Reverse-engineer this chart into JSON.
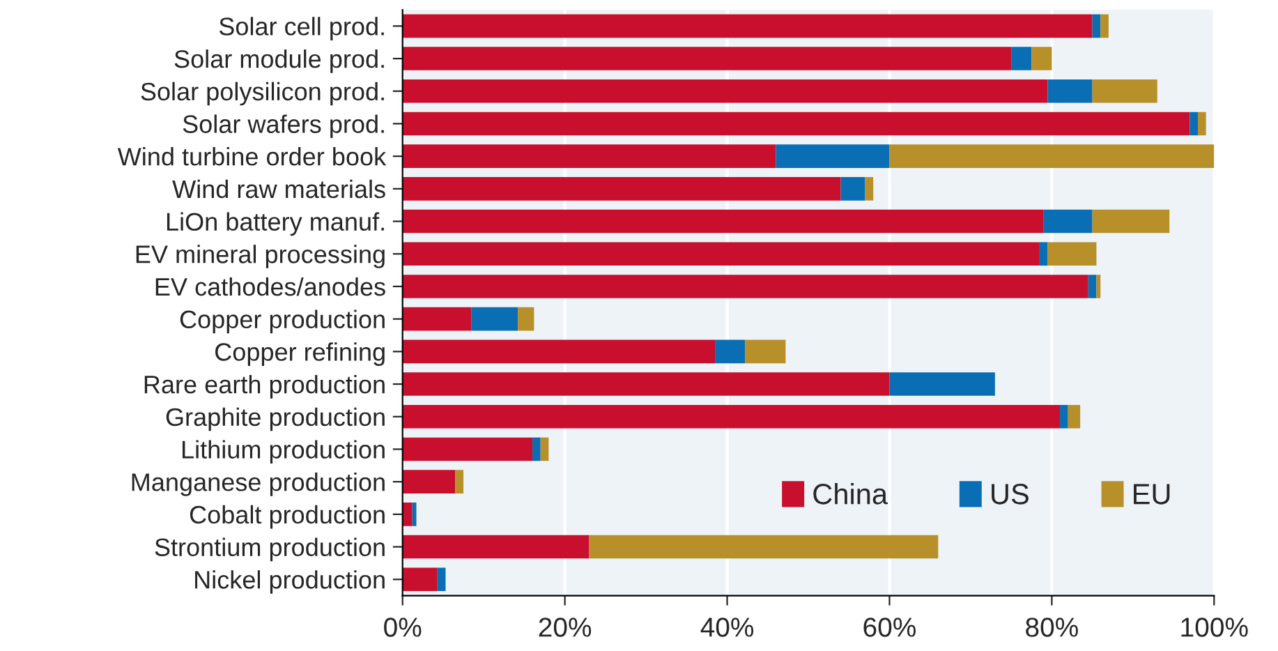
{
  "chart_data": {
    "type": "bar",
    "orientation": "horizontal",
    "stacked": true,
    "categories": [
      "Solar cell prod.",
      "Solar module prod.",
      "Solar polysilicon prod.",
      "Solar wafers prod.",
      "Wind turbine order book",
      "Wind raw materials",
      "LiOn battery manuf.",
      "EV mineral processing",
      "EV cathodes/anodes",
      "Copper production",
      "Copper refining",
      "Rare earth production",
      "Graphite production",
      "Lithium production",
      "Manganese production",
      "Cobalt production",
      "Strontium production",
      "Nickel production"
    ],
    "series": [
      {
        "name": "China",
        "color": "#c8102e",
        "values": [
          85,
          75,
          79.5,
          97,
          46,
          54,
          79,
          78.5,
          84.5,
          8.5,
          38.5,
          60,
          81,
          16,
          6.5,
          1.2,
          23,
          4.3
        ]
      },
      {
        "name": "US",
        "color": "#0a6eb4",
        "values": [
          1,
          2.5,
          5.5,
          1,
          14,
          3,
          6,
          1,
          1,
          5.7,
          3.7,
          13,
          1,
          1,
          0,
          0.5,
          0,
          1
        ]
      },
      {
        "name": "EU",
        "color": "#b8902a",
        "values": [
          1,
          2.5,
          8,
          1,
          40,
          1,
          9.5,
          6,
          0.5,
          2,
          5,
          0,
          1.5,
          1,
          1,
          0,
          43,
          0
        ]
      }
    ],
    "xlim": [
      0,
      100
    ],
    "xticks": [
      {
        "value": 0,
        "label": "0%"
      },
      {
        "value": 20,
        "label": "20%"
      },
      {
        "value": 40,
        "label": "40%"
      },
      {
        "value": 60,
        "label": "60%"
      },
      {
        "value": 80,
        "label": "80%"
      },
      {
        "value": 100,
        "label": "100%"
      }
    ],
    "grid": "x",
    "legend": "bottom right"
  }
}
